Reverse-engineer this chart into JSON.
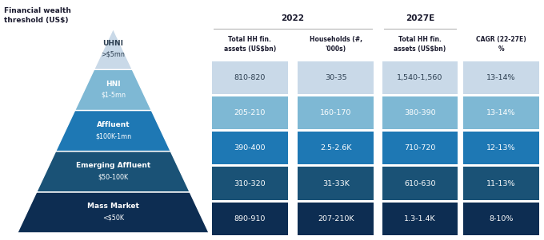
{
  "title_left": "Financial wealth\nthreshold (US$)",
  "pyramid_segments": [
    {
      "label": "UHNI\n>$5mn",
      "color": "#c9d9e8",
      "text_color": "#2c3e50"
    },
    {
      "label": "HNI\n$1-5mn",
      "color": "#7eb8d4",
      "text_color": "#ffffff"
    },
    {
      "label": "Affluent\n$100K-1mn",
      "color": "#1e78b4",
      "text_color": "#ffffff"
    },
    {
      "label": "Emerging Affluent\n$50-100K",
      "color": "#1a5276",
      "text_color": "#ffffff"
    },
    {
      "label": "Mass Market\n<$50K",
      "color": "#0d2d52",
      "text_color": "#ffffff"
    }
  ],
  "col_headers_2022": "2022",
  "col_headers_2027": "2027E",
  "col_subheaders": [
    "Total HH fin.\nassets (US$bn)",
    "Households (#,\n'000s)",
    "Total HH fin.\nassets (US$bn)",
    "CAGR (22-27E)\n%"
  ],
  "table_rows": [
    [
      "810-820",
      "30-35",
      "1,540-1,560",
      "13-14%"
    ],
    [
      "205-210",
      "160-170",
      "380-390",
      "13-14%"
    ],
    [
      "390-400",
      "2.5-2.6K",
      "710-720",
      "12-13%"
    ],
    [
      "310-320",
      "31-33K",
      "610-630",
      "11-13%"
    ],
    [
      "890-910",
      "207-210K",
      "1.3-1.4K",
      "8-10%"
    ]
  ],
  "row_colors": [
    "#c9d9e8",
    "#7eb8d4",
    "#1e78b4",
    "#1a5276",
    "#0d2d52"
  ],
  "row_text_colors": [
    "#2c3e50",
    "#ffffff",
    "#ffffff",
    "#ffffff",
    "#ffffff"
  ],
  "bg_color": "#ffffff"
}
